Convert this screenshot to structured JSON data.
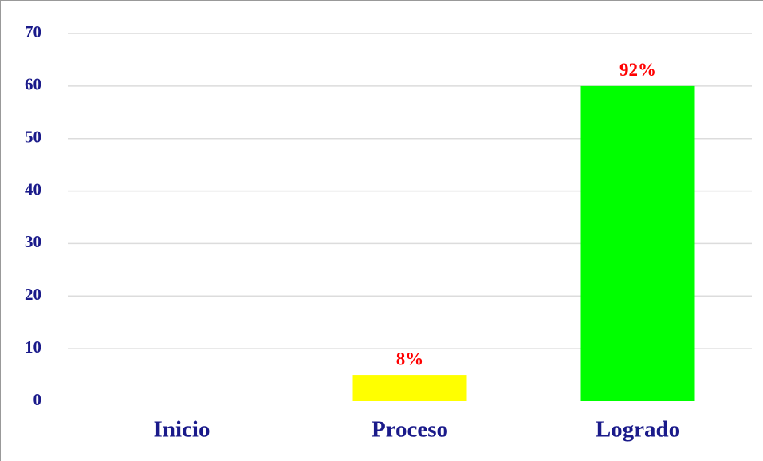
{
  "chart_data": {
    "type": "bar",
    "categories": [
      "Inicio",
      "Proceso",
      "Logrado"
    ],
    "values": [
      0,
      5,
      60
    ],
    "value_labels": [
      null,
      "8%",
      "92%"
    ],
    "colors": [
      "#ff0000",
      "#ffff00",
      "#00ff00"
    ],
    "ylim": [
      0,
      70
    ],
    "yticks": [
      0,
      10,
      20,
      30,
      40,
      50,
      60,
      70
    ],
    "grid": true
  }
}
